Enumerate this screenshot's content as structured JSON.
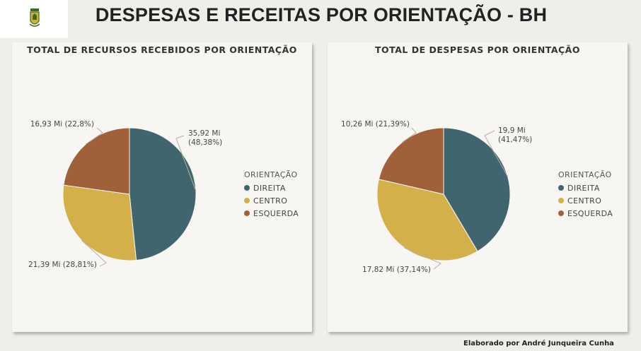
{
  "header": {
    "title": "DESPESAS E RECEITAS POR ORIENTAÇÃO - BH"
  },
  "footer": {
    "credit": "Elaborado por André Junqueira Cunha"
  },
  "colors": {
    "direita": "#41656e",
    "centro": "#d4b04a",
    "esquerda": "#a0603a"
  },
  "chart_data": [
    {
      "type": "pie",
      "title": "TOTAL DE RECURSOS RECEBIDOS POR ORIENTAÇÃO",
      "legend_title": "ORIENTAÇÃO",
      "legend_position": "right",
      "unit": "Mi",
      "slices": [
        {
          "label": "DIREITA",
          "value": 35.92,
          "percent": 48.38,
          "data_label": [
            "35,92 Mi",
            "(48,38%)"
          ]
        },
        {
          "label": "CENTRO",
          "value": 21.39,
          "percent": 28.81,
          "data_label": [
            "21,39 Mi (28,81%)"
          ]
        },
        {
          "label": "ESQUERDA",
          "value": 16.93,
          "percent": 22.8,
          "data_label": [
            "16,93 Mi (22,8%)"
          ]
        }
      ]
    },
    {
      "type": "pie",
      "title": "TOTAL DE DESPESAS POR ORIENTAÇÃO",
      "legend_title": "ORIENTAÇÃO",
      "legend_position": "right",
      "unit": "Mi",
      "slices": [
        {
          "label": "DIREITA",
          "value": 19.9,
          "percent": 41.47,
          "data_label": [
            "19,9 Mi",
            "(41,47%)"
          ]
        },
        {
          "label": "CENTRO",
          "value": 17.82,
          "percent": 37.14,
          "data_label": [
            "17,82 Mi (37,14%)"
          ]
        },
        {
          "label": "ESQUERDA",
          "value": 10.26,
          "percent": 21.39,
          "data_label": [
            "10,26 Mi (21,39%)"
          ]
        }
      ]
    }
  ]
}
